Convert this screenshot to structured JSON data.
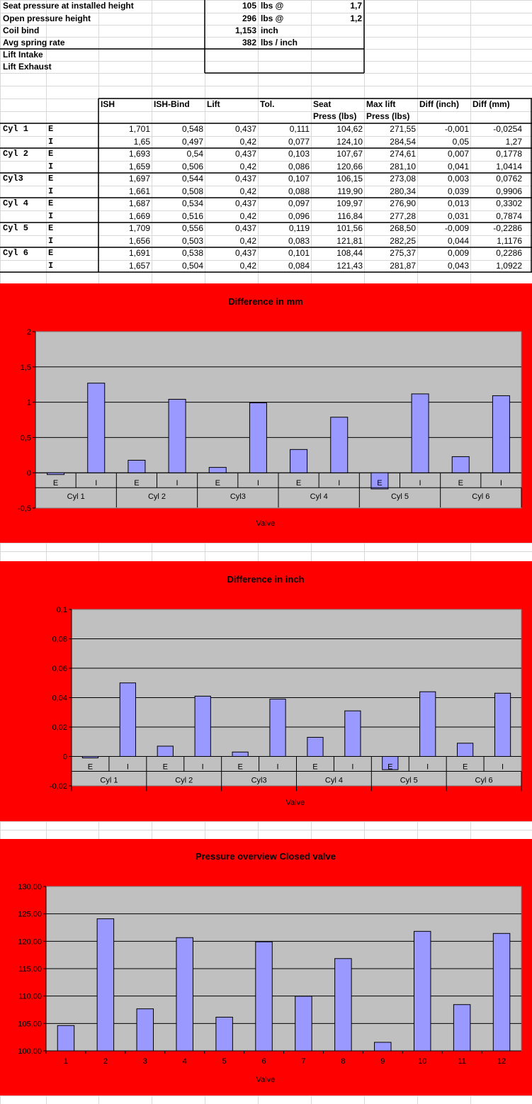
{
  "params": [
    {
      "label": "Seat pressure at installed height",
      "value": "105",
      "unit": "lbs  @",
      "at": "1,7"
    },
    {
      "label": "Open pressure height",
      "value": "296",
      "unit": "lbs  @",
      "at": "1,2"
    },
    {
      "label": "Coil bind",
      "value": "1,153",
      "unit": "inch",
      "at": ""
    },
    {
      "label": "Avg spring rate",
      "value": "382",
      "unit": "lbs / inch",
      "at": ""
    },
    {
      "label": "Lift Intake",
      "value": "",
      "unit": "",
      "at": ""
    },
    {
      "label": "Lift Exhaust",
      "value": "",
      "unit": "",
      "at": ""
    }
  ],
  "table": {
    "headers": [
      {
        "line1": "ISH",
        "line2": ""
      },
      {
        "line1": "ISH-Bind",
        "line2": ""
      },
      {
        "line1": "Lift",
        "line2": ""
      },
      {
        "line1": "Tol.",
        "line2": ""
      },
      {
        "line1": "Seat",
        "line2": "Press (lbs)"
      },
      {
        "line1": "Max lift",
        "line2": "Press (lbs)"
      },
      {
        "line1": "Diff (inch)",
        "line2": ""
      },
      {
        "line1": "Diff (mm)",
        "line2": ""
      }
    ],
    "rows": [
      {
        "cyl": "Cyl 1",
        "valve": "E",
        "cells": [
          "1,701",
          "0,548",
          "0,437",
          "0,111",
          "104,62",
          "271,55",
          "-0,001",
          "-0,0254"
        ]
      },
      {
        "cyl": "",
        "valve": "I",
        "cells": [
          "1,65",
          "0,497",
          "0,42",
          "0,077",
          "124,10",
          "284,54",
          "0,05",
          "1,27"
        ]
      },
      {
        "cyl": "Cyl 2",
        "valve": "E",
        "cells": [
          "1,693",
          "0,54",
          "0,437",
          "0,103",
          "107,67",
          "274,61",
          "0,007",
          "0,1778"
        ]
      },
      {
        "cyl": "",
        "valve": "I",
        "cells": [
          "1,659",
          "0,506",
          "0,42",
          "0,086",
          "120,66",
          "281,10",
          "0,041",
          "1,0414"
        ]
      },
      {
        "cyl": "Cyl3",
        "valve": "E",
        "cells": [
          "1,697",
          "0,544",
          "0,437",
          "0,107",
          "106,15",
          "273,08",
          "0,003",
          "0,0762"
        ]
      },
      {
        "cyl": "",
        "valve": "I",
        "cells": [
          "1,661",
          "0,508",
          "0,42",
          "0,088",
          "119,90",
          "280,34",
          "0,039",
          "0,9906"
        ]
      },
      {
        "cyl": "Cyl 4",
        "valve": "E",
        "cells": [
          "1,687",
          "0,534",
          "0,437",
          "0,097",
          "109,97",
          "276,90",
          "0,013",
          "0,3302"
        ]
      },
      {
        "cyl": "",
        "valve": "I",
        "cells": [
          "1,669",
          "0,516",
          "0,42",
          "0,096",
          "116,84",
          "277,28",
          "0,031",
          "0,7874"
        ]
      },
      {
        "cyl": "Cyl 5",
        "valve": "E",
        "cells": [
          "1,709",
          "0,556",
          "0,437",
          "0,119",
          "101,56",
          "268,50",
          "-0,009",
          "-0,2286"
        ]
      },
      {
        "cyl": "",
        "valve": "I",
        "cells": [
          "1,656",
          "0,503",
          "0,42",
          "0,083",
          "121,81",
          "282,25",
          "0,044",
          "1,1176"
        ]
      },
      {
        "cyl": "Cyl 6",
        "valve": "E",
        "cells": [
          "1,691",
          "0,538",
          "0,437",
          "0,101",
          "108,44",
          "275,37",
          "0,009",
          "0,2286"
        ]
      },
      {
        "cyl": "",
        "valve": "I",
        "cells": [
          "1,657",
          "0,504",
          "0,42",
          "0,084",
          "121,43",
          "281,87",
          "0,043",
          "1,0922"
        ]
      }
    ]
  },
  "chart_data": [
    {
      "type": "bar",
      "title": "Difference in mm",
      "xlabel": "Valve",
      "ylabel": "",
      "ylim": [
        -0.5,
        2
      ],
      "yticks": [
        -0.5,
        0,
        0.5,
        1,
        1.5,
        2
      ],
      "ytick_labels": [
        "-0,5",
        "0",
        "0,5",
        "1",
        "1,5",
        "2"
      ],
      "groups": [
        "Cyl 1",
        "Cyl 2",
        "Cyl3",
        "Cyl 4",
        "Cyl 5",
        "Cyl 6"
      ],
      "categories": [
        "E",
        "I",
        "E",
        "I",
        "E",
        "I",
        "E",
        "I",
        "E",
        "I",
        "E",
        "I"
      ],
      "values": [
        -0.0254,
        1.27,
        0.1778,
        1.0414,
        0.0762,
        0.9906,
        0.3302,
        0.7874,
        -0.2286,
        1.1176,
        0.2286,
        1.0922
      ],
      "bar_color": "#9999ff",
      "plot_bg": "#c0c0c0",
      "grid": true,
      "legend": "none"
    },
    {
      "type": "bar",
      "title": "Difference in inch",
      "xlabel": "Valve",
      "ylabel": "",
      "ylim": [
        -0.02,
        0.1
      ],
      "yticks": [
        -0.02,
        0,
        0.02,
        0.04,
        0.06,
        0.08,
        0.1
      ],
      "ytick_labels": [
        "-0,02",
        "0",
        "0,02",
        "0,04",
        "0,06",
        "0,08",
        "0,1"
      ],
      "groups": [
        "Cyl 1",
        "Cyl 2",
        "Cyl3",
        "Cyl 4",
        "Cyl 5",
        "Cyl 6"
      ],
      "categories": [
        "E",
        "I",
        "E",
        "I",
        "E",
        "I",
        "E",
        "I",
        "E",
        "I",
        "E",
        "I"
      ],
      "values": [
        -0.001,
        0.05,
        0.007,
        0.041,
        0.003,
        0.039,
        0.013,
        0.031,
        -0.009,
        0.044,
        0.009,
        0.043
      ],
      "bar_color": "#9999ff",
      "plot_bg": "#c0c0c0",
      "grid": true,
      "legend": "none"
    },
    {
      "type": "bar",
      "title": "Pressure overview Closed valve",
      "xlabel": "Valve",
      "ylabel": "",
      "ylim": [
        100,
        130
      ],
      "yticks": [
        100,
        105,
        110,
        115,
        120,
        125,
        130
      ],
      "ytick_labels": [
        "100,00",
        "105,00",
        "110,00",
        "115,00",
        "120,00",
        "125,00",
        "130,00"
      ],
      "groups": [],
      "categories": [
        "1",
        "2",
        "3",
        "4",
        "5",
        "6",
        "7",
        "8",
        "9",
        "10",
        "11",
        "12"
      ],
      "values": [
        104.62,
        124.1,
        107.67,
        120.66,
        106.15,
        119.9,
        109.97,
        116.84,
        101.56,
        121.81,
        108.44,
        121.43
      ],
      "bar_color": "#9999ff",
      "plot_bg": "#c0c0c0",
      "grid": true,
      "legend": "none"
    }
  ]
}
